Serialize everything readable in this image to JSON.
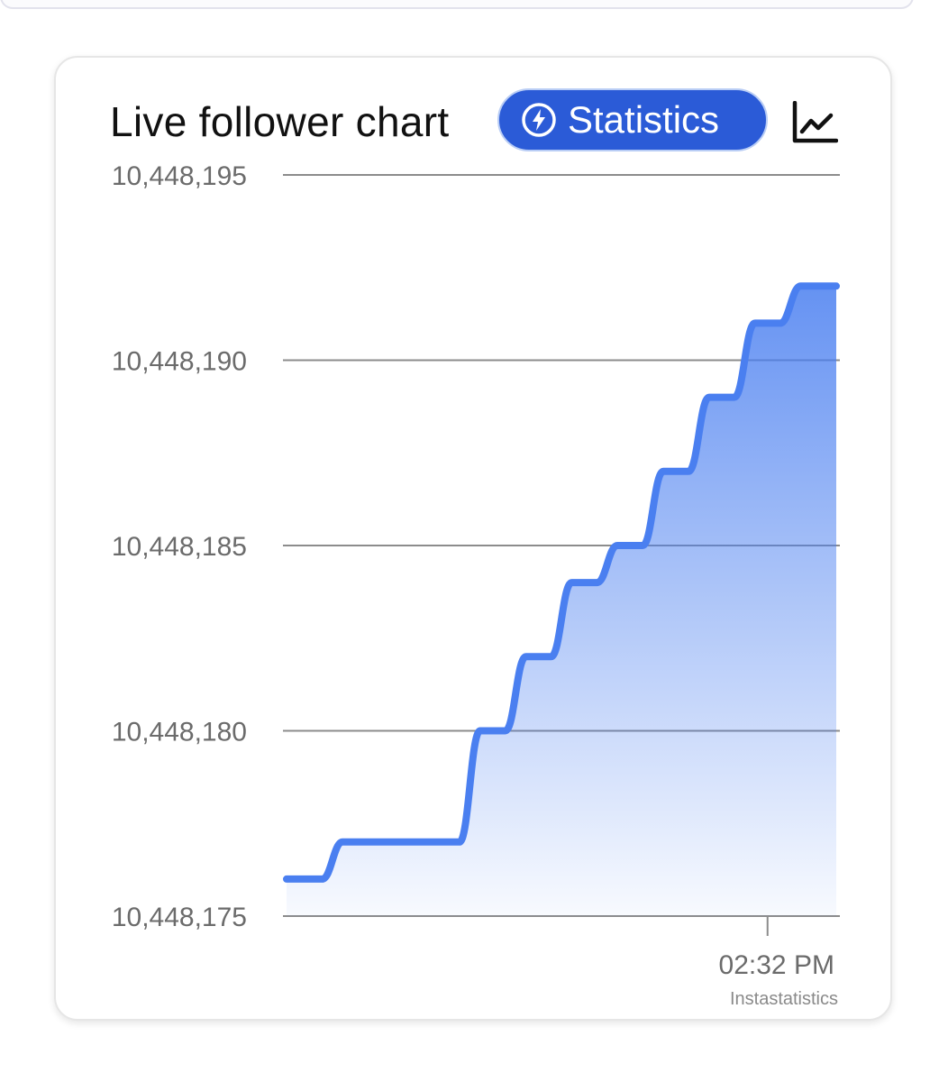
{
  "header": {
    "title": "Live follower chart",
    "statistics_button": "Statistics",
    "chart_icon": "line-chart-icon",
    "bolt_icon": "lightning-bolt-icon"
  },
  "colors": {
    "accent": "#2b5bd7",
    "line": "#4a7ff0",
    "grid": "#8c8c8c"
  },
  "chart_data": {
    "type": "line",
    "title": "Live follower chart",
    "xlabel": "",
    "ylabel": "",
    "ylim": [
      10448175,
      10448195
    ],
    "y_ticks": [
      10448175,
      10448180,
      10448185,
      10448190,
      10448195
    ],
    "y_tick_labels": [
      "10,448,175",
      "10,448,180",
      "10,448,185",
      "10,448,190",
      "10,448,195"
    ],
    "x_tick_labels": [
      "02:32 PM"
    ],
    "grid": true,
    "fill": "gradient-area",
    "series": [
      {
        "values": [
          10448176,
          10448177,
          10448177,
          10448177,
          10448180,
          10448182,
          10448184,
          10448185,
          10448187,
          10448189,
          10448191,
          10448192
        ]
      }
    ],
    "credit": "Instastatistics"
  }
}
